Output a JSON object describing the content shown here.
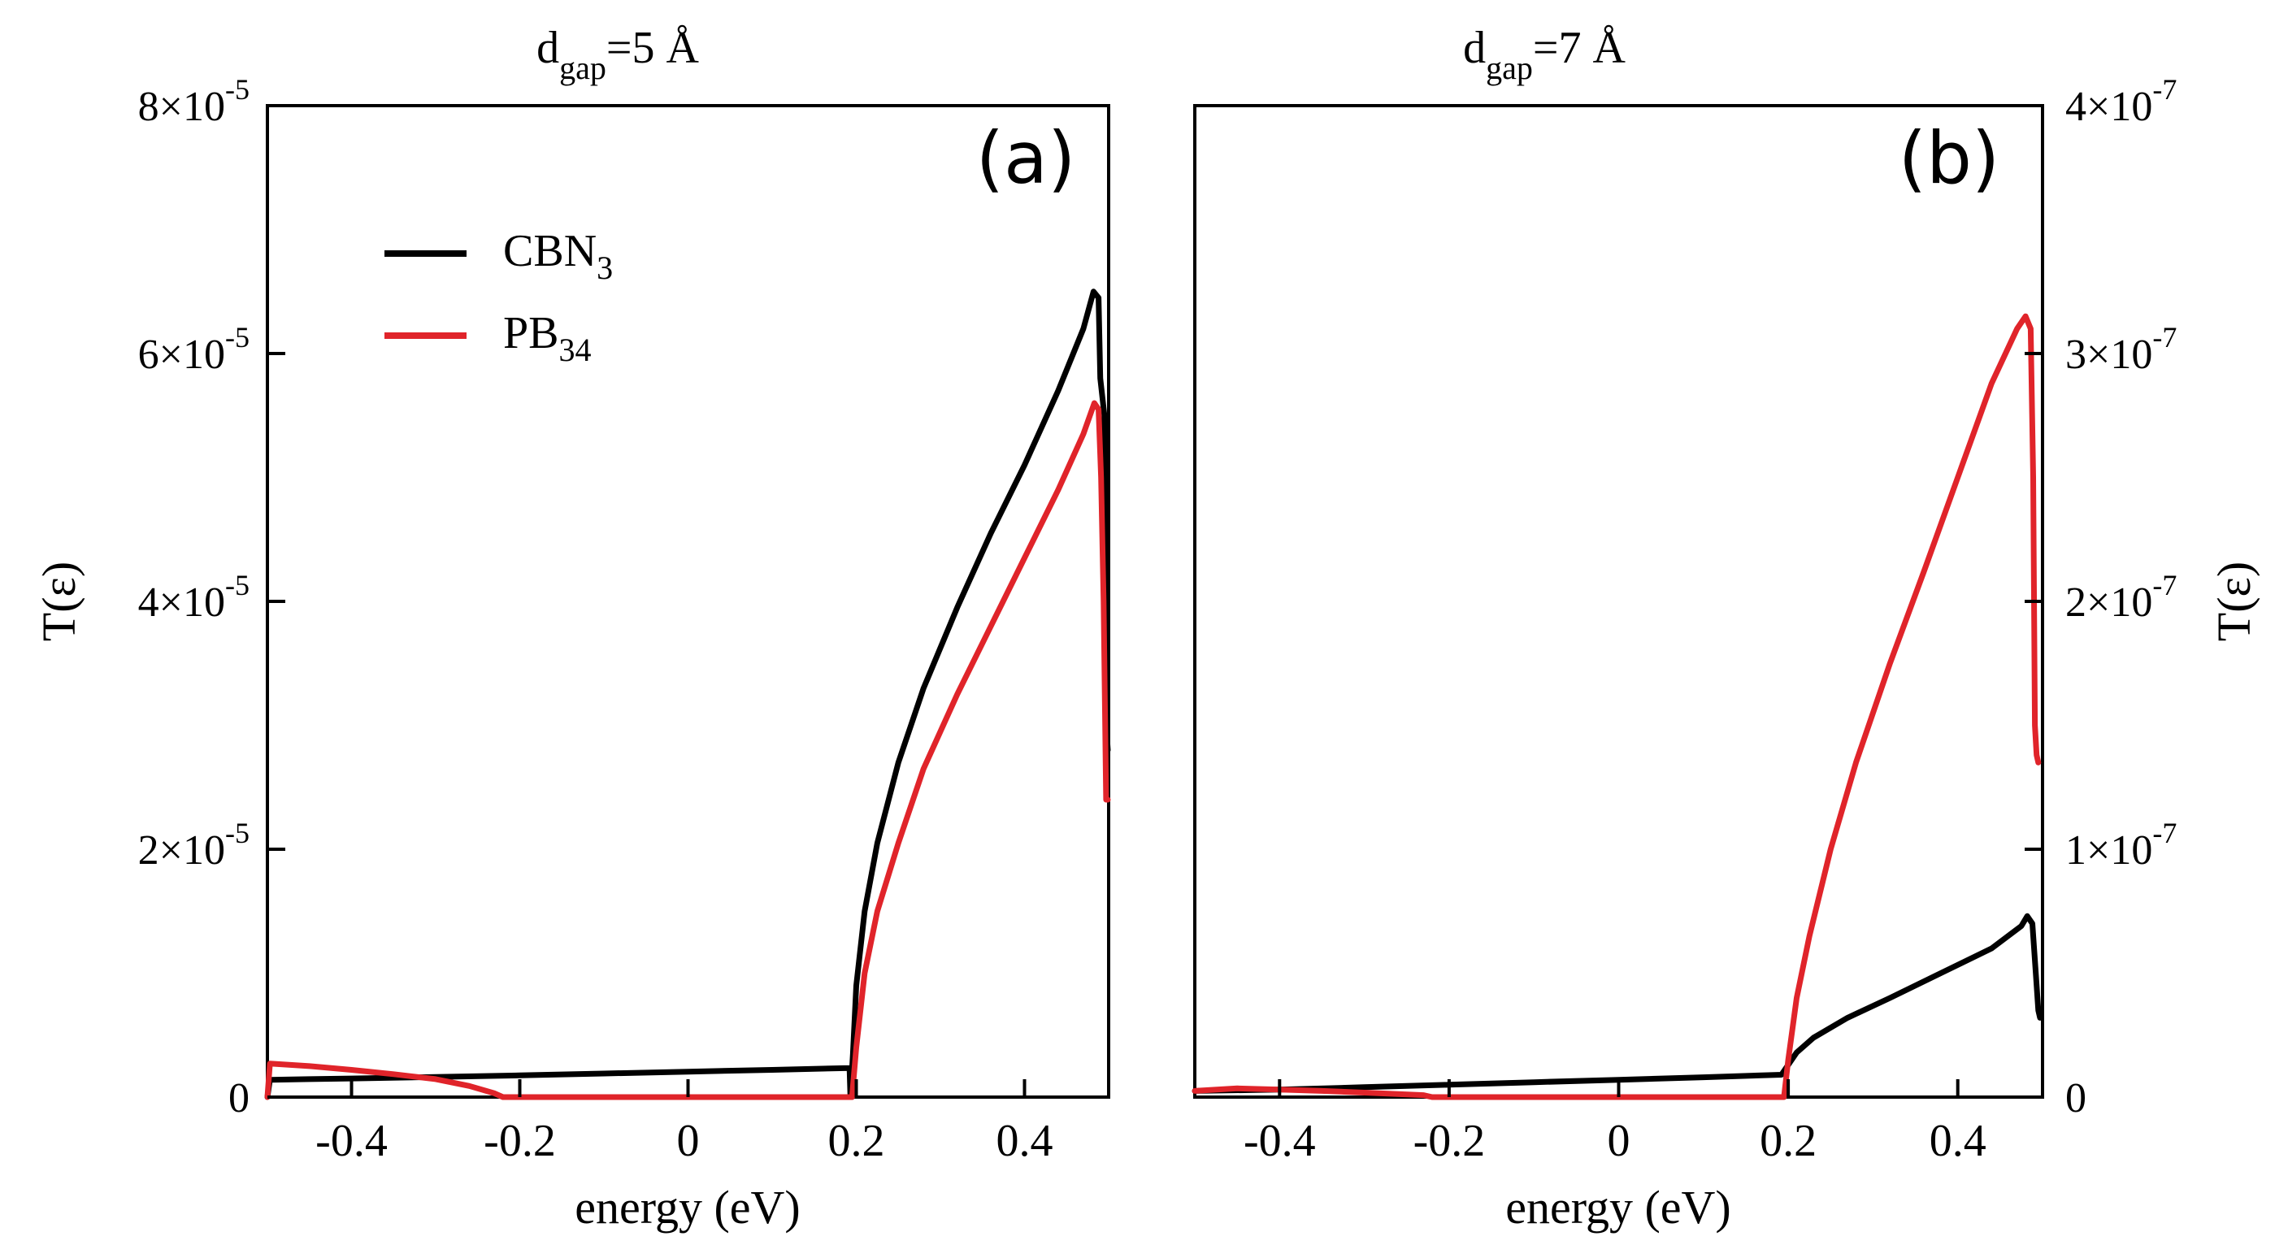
{
  "chart_data": [
    {
      "type": "line",
      "panel_label": "(a)",
      "title": "=5 Å",
      "title_prefix": "d",
      "title_sub": "gap",
      "xlabel": "energy (eV)",
      "ylabel": "T(ε)",
      "yaxis_side": "left",
      "xlim": [
        -0.5,
        0.5
      ],
      "ylim": [
        0,
        8e-05
      ],
      "xticks": [
        -0.4,
        -0.2,
        0,
        0.2,
        0.4
      ],
      "xtick_labels": [
        "-0.4",
        "-0.2",
        "0",
        "0.2",
        "0.4"
      ],
      "yticks": [
        0,
        2e-05,
        4e-05,
        6e-05,
        8e-05
      ],
      "ytick_labels": [
        {
          "mant": "0",
          "exp": ""
        },
        {
          "mant": "2×10",
          "exp": "-5"
        },
        {
          "mant": "4×10",
          "exp": "-5"
        },
        {
          "mant": "6×10",
          "exp": "-5"
        },
        {
          "mant": "8×10",
          "exp": "-5"
        }
      ],
      "legend": {
        "position": "upper-left",
        "entries": [
          {
            "name": "CBN",
            "sub": "3",
            "color": "#000000"
          },
          {
            "name": "PB",
            "sub": "34",
            "color": "#e0242a"
          }
        ]
      },
      "series": [
        {
          "name": "CBN3",
          "color": "#000000",
          "points": [
            [
              -0.5,
              0
            ],
            [
              -0.497,
              1.4e-06
            ],
            [
              -0.45,
              1.45e-06
            ],
            [
              -0.4,
              1.5e-06
            ],
            [
              -0.3,
              1.62e-06
            ],
            [
              -0.2,
              1.75e-06
            ],
            [
              -0.1,
              1.9e-06
            ],
            [
              0,
              2.05e-06
            ],
            [
              0.1,
              2.2e-06
            ],
            [
              0.192,
              2.35e-06
            ],
            [
              0.193,
              0
            ],
            [
              0.196,
              3.5e-06
            ],
            [
              0.2,
              9e-06
            ],
            [
              0.21,
              1.5e-05
            ],
            [
              0.225,
              2.05e-05
            ],
            [
              0.25,
              2.7e-05
            ],
            [
              0.28,
              3.3e-05
            ],
            [
              0.32,
              3.95e-05
            ],
            [
              0.36,
              4.55e-05
            ],
            [
              0.4,
              5.1e-05
            ],
            [
              0.44,
              5.7e-05
            ],
            [
              0.47,
              6.2e-05
            ],
            [
              0.482,
              6.5e-05
            ],
            [
              0.488,
              6.45e-05
            ],
            [
              0.49,
              5.8e-05
            ],
            [
              0.495,
              5.5e-05
            ],
            [
              0.497,
              3e-05
            ],
            [
              0.499,
              2.8e-05
            ]
          ]
        },
        {
          "name": "PB34",
          "color": "#e0242a",
          "points": [
            [
              -0.5,
              0
            ],
            [
              -0.497,
              2.7e-06
            ],
            [
              -0.45,
              2.5e-06
            ],
            [
              -0.4,
              2.2e-06
            ],
            [
              -0.35,
              1.85e-06
            ],
            [
              -0.3,
              1.45e-06
            ],
            [
              -0.26,
              9e-07
            ],
            [
              -0.23,
              3e-07
            ],
            [
              -0.22,
              0
            ],
            [
              0,
              0
            ],
            [
              0.1,
              0
            ],
            [
              0.195,
              0
            ],
            [
              0.2,
              4e-06
            ],
            [
              0.21,
              1e-05
            ],
            [
              0.225,
              1.5e-05
            ],
            [
              0.25,
              2.05e-05
            ],
            [
              0.28,
              2.65e-05
            ],
            [
              0.32,
              3.25e-05
            ],
            [
              0.36,
              3.8e-05
            ],
            [
              0.4,
              4.35e-05
            ],
            [
              0.44,
              4.9e-05
            ],
            [
              0.47,
              5.35e-05
            ],
            [
              0.483,
              5.6e-05
            ],
            [
              0.488,
              5.55e-05
            ],
            [
              0.491,
              5e-05
            ],
            [
              0.494,
              4e-05
            ],
            [
              0.497,
              2.4e-05
            ],
            [
              0.499,
              2.4e-05
            ]
          ]
        }
      ]
    },
    {
      "type": "line",
      "panel_label": "(b)",
      "title": "=7 Å",
      "title_prefix": "d",
      "title_sub": "gap",
      "xlabel": "energy (eV)",
      "ylabel": "T(ε)",
      "yaxis_side": "right",
      "xlim": [
        -0.5,
        0.5
      ],
      "ylim": [
        0,
        4e-07
      ],
      "xticks": [
        -0.4,
        -0.2,
        0,
        0.2,
        0.4
      ],
      "xtick_labels": [
        "-0.4",
        "-0.2",
        "0",
        "0.2",
        "0.4"
      ],
      "yticks": [
        0,
        1e-07,
        2e-07,
        3e-07,
        4e-07
      ],
      "ytick_labels": [
        {
          "mant": "0",
          "exp": ""
        },
        {
          "mant": "1×10",
          "exp": "-7"
        },
        {
          "mant": "2×10",
          "exp": "-7"
        },
        {
          "mant": "3×10",
          "exp": "-7"
        },
        {
          "mant": "4×10",
          "exp": "-7"
        }
      ],
      "series": [
        {
          "name": "CBN3",
          "color": "#000000",
          "points": [
            [
              -0.5,
              2.5e-09
            ],
            [
              -0.4,
              3e-09
            ],
            [
              -0.3,
              4e-09
            ],
            [
              -0.2,
              5e-09
            ],
            [
              -0.1,
              6e-09
            ],
            [
              0,
              7e-09
            ],
            [
              0.1,
              8e-09
            ],
            [
              0.192,
              9e-09
            ],
            [
              0.198,
              1.2e-08
            ],
            [
              0.21,
              1.8e-08
            ],
            [
              0.23,
              2.4e-08
            ],
            [
              0.27,
              3.2e-08
            ],
            [
              0.32,
              4e-08
            ],
            [
              0.38,
              5e-08
            ],
            [
              0.44,
              6e-08
            ],
            [
              0.475,
              6.9e-08
            ],
            [
              0.482,
              7.3e-08
            ],
            [
              0.488,
              7e-08
            ],
            [
              0.492,
              5e-08
            ],
            [
              0.495,
              3.5e-08
            ],
            [
              0.497,
              3.2e-08
            ]
          ]
        },
        {
          "name": "PB34",
          "color": "#e0242a",
          "points": [
            [
              -0.5,
              2.5e-09
            ],
            [
              -0.45,
              3.5e-09
            ],
            [
              -0.4,
              3e-09
            ],
            [
              -0.35,
              2.5e-09
            ],
            [
              -0.3,
              1.8e-09
            ],
            [
              -0.23,
              8e-10
            ],
            [
              -0.22,
              0
            ],
            [
              0,
              0
            ],
            [
              0.1,
              0
            ],
            [
              0.195,
              0
            ],
            [
              0.2,
              1.5e-08
            ],
            [
              0.21,
              4e-08
            ],
            [
              0.225,
              6.5e-08
            ],
            [
              0.25,
              1e-07
            ],
            [
              0.28,
              1.35e-07
            ],
            [
              0.32,
              1.75e-07
            ],
            [
              0.36,
              2.12e-07
            ],
            [
              0.4,
              2.5e-07
            ],
            [
              0.44,
              2.88e-07
            ],
            [
              0.47,
              3.1e-07
            ],
            [
              0.48,
              3.15e-07
            ],
            [
              0.486,
              3.1e-07
            ],
            [
              0.489,
              2.5e-07
            ],
            [
              0.491,
              1.5e-07
            ],
            [
              0.493,
              1.38e-07
            ],
            [
              0.495,
              1.35e-07
            ]
          ]
        }
      ]
    }
  ]
}
